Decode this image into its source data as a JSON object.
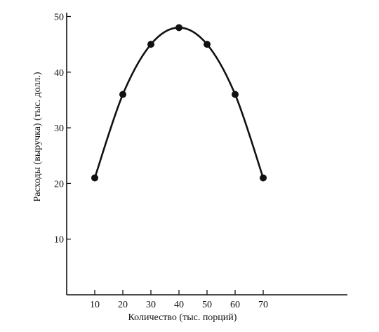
{
  "chart_data": {
    "type": "line",
    "xlabel": "Количество (тыс. порций)",
    "ylabel": "Расходы (выручка) (тыс. долл.)",
    "x": [
      10,
      20,
      30,
      40,
      50,
      60,
      70
    ],
    "series": [
      {
        "values": [
          21,
          36,
          45,
          48,
          45,
          36,
          21
        ]
      }
    ],
    "x_ticks": [
      "10",
      "20",
      "30",
      "40",
      "50",
      "60",
      "70"
    ],
    "y_ticks": [
      "10",
      "20",
      "30",
      "40",
      "50"
    ],
    "xlim": [
      0,
      100
    ],
    "ylim": [
      0,
      52
    ],
    "grid": false,
    "smooth": true,
    "markers": true,
    "line_color": "#111111",
    "marker_color": "#111111"
  }
}
